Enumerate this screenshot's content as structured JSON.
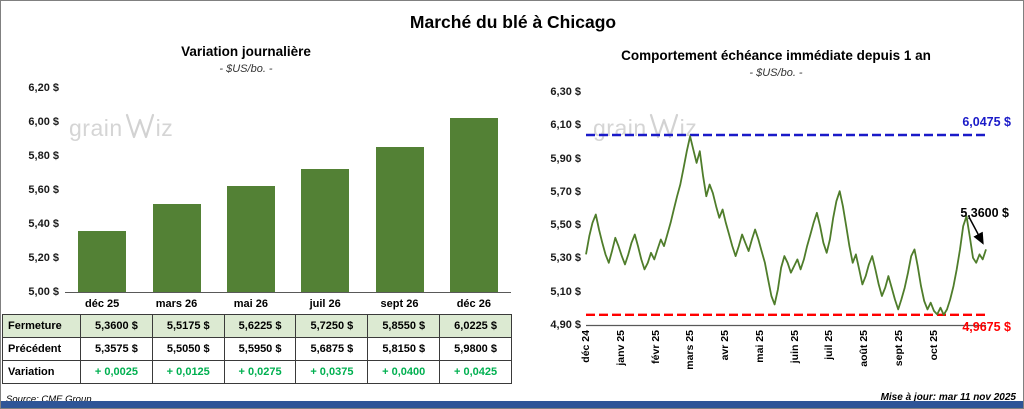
{
  "page": {
    "title": "Marché du blé à Chicago",
    "source": "Source: CME Group",
    "updated": "Mise à jour: mar 11 nov 2025",
    "watermark": {
      "left": "grain",
      "right": "iz"
    }
  },
  "colors": {
    "bar_green": "#538135",
    "line_green": "#4f7d2b",
    "row_highlight_green": "#dcead2",
    "variation_green": "#00B050",
    "max_line_blue": "#1a1ac8",
    "min_line_red": "#ff0000",
    "footer_blue": "#2E5597",
    "watermark_gray": "#d5d5d5"
  },
  "chart_data": [
    {
      "type": "bar",
      "title": "Variation  journalière",
      "subtitle": "- $US/bo. -",
      "categories": [
        "déc 25",
        "mars 26",
        "mai 26",
        "juil 26",
        "sept 26",
        "déc 26"
      ],
      "values": [
        5.36,
        5.5175,
        5.6225,
        5.725,
        5.855,
        6.0225
      ],
      "ylim": [
        5.0,
        6.2
      ],
      "ytick_labels": [
        "5,00 $",
        "5,20 $",
        "5,40 $",
        "5,60 $",
        "5,80 $",
        "6,00 $",
        "6,20 $"
      ],
      "grid": false,
      "legend": "none"
    },
    {
      "type": "line",
      "title": "Comportement  échéance  immédiate  depuis  1 an",
      "subtitle": "- $US/bo. -",
      "x_labels": [
        "déc 24",
        "janv 25",
        "févr 25",
        "mars 25",
        "avr 25",
        "mai 25",
        "juin 25",
        "juil 25",
        "août 25",
        "sept 25",
        "oct 25"
      ],
      "values": [
        5.33,
        5.44,
        5.52,
        5.57,
        5.48,
        5.4,
        5.33,
        5.28,
        5.35,
        5.43,
        5.38,
        5.32,
        5.27,
        5.33,
        5.4,
        5.45,
        5.38,
        5.3,
        5.24,
        5.28,
        5.34,
        5.3,
        5.36,
        5.42,
        5.38,
        5.45,
        5.52,
        5.6,
        5.68,
        5.75,
        5.85,
        5.95,
        6.04,
        5.96,
        5.88,
        5.95,
        5.8,
        5.68,
        5.75,
        5.7,
        5.62,
        5.55,
        5.6,
        5.52,
        5.45,
        5.38,
        5.32,
        5.38,
        5.45,
        5.4,
        5.35,
        5.42,
        5.48,
        5.42,
        5.35,
        5.28,
        5.18,
        5.08,
        5.03,
        5.12,
        5.25,
        5.32,
        5.28,
        5.22,
        5.26,
        5.3,
        5.24,
        5.3,
        5.38,
        5.45,
        5.52,
        5.58,
        5.5,
        5.4,
        5.34,
        5.42,
        5.55,
        5.65,
        5.71,
        5.62,
        5.5,
        5.38,
        5.28,
        5.33,
        5.24,
        5.15,
        5.2,
        5.27,
        5.32,
        5.24,
        5.15,
        5.08,
        5.13,
        5.2,
        5.13,
        5.06,
        5.0,
        5.06,
        5.13,
        5.22,
        5.32,
        5.36,
        5.26,
        5.14,
        5.05,
        5.0,
        5.04,
        4.99,
        4.97,
        5.01,
        4.9675,
        5.0,
        5.06,
        5.14,
        5.24,
        5.36,
        5.5,
        5.56,
        5.44,
        5.31,
        5.28,
        5.33,
        5.3,
        5.36
      ],
      "ylim": [
        4.9,
        6.3
      ],
      "ytick_labels": [
        "4,90 $",
        "5,10 $",
        "5,30 $",
        "5,50 $",
        "5,70 $",
        "5,90 $",
        "6,10 $",
        "6,30 $"
      ],
      "max_line": {
        "value": 6.0475,
        "label": "6,0475  $"
      },
      "min_line": {
        "value": 4.9675,
        "label": "4,9675  $"
      },
      "last_value": 5.36,
      "last_label": "5,3600 $",
      "grid": false,
      "legend": "none"
    }
  ],
  "table": {
    "rows": [
      {
        "header": "Fermeture",
        "values": [
          "5,3600   $",
          "5,5175   $",
          "5,6225   $",
          "5,7250   $",
          "5,8550   $",
          "6,0225   $"
        ]
      },
      {
        "header": "Précédent",
        "values": [
          "5,3575   $",
          "5,5050   $",
          "5,5950   $",
          "5,6875   $",
          "5,8150   $",
          "5,9800   $"
        ]
      },
      {
        "header": "Variation",
        "values": [
          "+ 0,0025",
          "+ 0,0125",
          "+ 0,0275",
          "+ 0,0375",
          "+ 0,0400",
          "+ 0,0425"
        ]
      }
    ]
  }
}
